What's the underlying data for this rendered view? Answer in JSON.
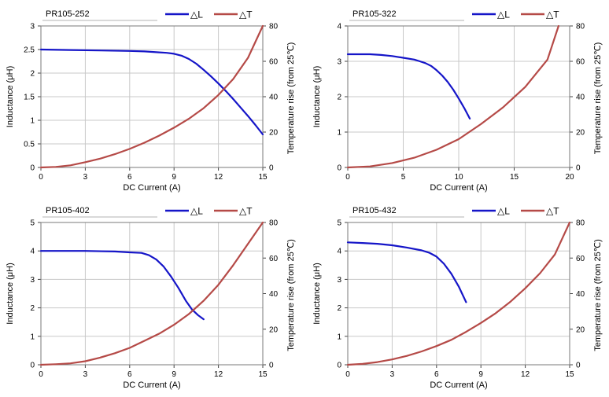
{
  "chart_data": [
    {
      "type": "line",
      "title": "PR105-252",
      "xlabel": "DC Current (A)",
      "ylabel": "Inductance (μH)",
      "y2label": "Temperature rise (from 25℃)",
      "xlim": [
        0,
        15
      ],
      "xticks": [
        0,
        3,
        6,
        9,
        12,
        15
      ],
      "ylim": [
        0,
        3
      ],
      "yticks": [
        "0",
        "0.5",
        "1",
        "1.5",
        "2",
        "2.5",
        "3"
      ],
      "y2lim": [
        0,
        80
      ],
      "y2ticks": [
        "0",
        "20",
        "40",
        "60",
        "80"
      ],
      "grid": true,
      "legend": "top-center",
      "series": [
        {
          "name": "△L",
          "axis": "left",
          "color": "#1515c8",
          "x": [
            0,
            2,
            4,
            6,
            7,
            8,
            8.5,
            9,
            9.5,
            10,
            10.5,
            11,
            11.5,
            12,
            12.5,
            13,
            13.5,
            14,
            14.5,
            15
          ],
          "y": [
            2.5,
            2.49,
            2.48,
            2.47,
            2.46,
            2.44,
            2.43,
            2.41,
            2.37,
            2.3,
            2.2,
            2.07,
            1.93,
            1.78,
            1.62,
            1.45,
            1.27,
            1.09,
            0.9,
            0.7
          ]
        },
        {
          "name": "△T",
          "axis": "right",
          "color": "#b54a47",
          "x": [
            0,
            1,
            2,
            3,
            4,
            5,
            6,
            7,
            8,
            9,
            10,
            11,
            12,
            13,
            14,
            15
          ],
          "y": [
            0,
            0.3,
            1.2,
            3,
            5,
            7.5,
            10.5,
            14,
            18,
            22.5,
            27.5,
            33.5,
            41,
            50,
            62,
            80
          ]
        }
      ]
    },
    {
      "type": "line",
      "title": "PR105-322",
      "xlabel": "DC Current (A)",
      "ylabel": "Inductance (μH)",
      "y2label": "Temperature rise (from 25℃)",
      "xlim": [
        0,
        20
      ],
      "xticks": [
        0,
        5,
        10,
        15,
        20
      ],
      "ylim": [
        0,
        4
      ],
      "yticks": [
        "0",
        "1",
        "2",
        "3",
        "4"
      ],
      "y2lim": [
        0,
        80
      ],
      "y2ticks": [
        "0",
        "20",
        "40",
        "60",
        "80"
      ],
      "grid": true,
      "legend": "top-center",
      "series": [
        {
          "name": "△L",
          "axis": "left",
          "color": "#1515c8",
          "x": [
            0,
            2,
            3,
            4,
            5,
            6,
            6.5,
            7,
            7.5,
            8,
            8.5,
            9,
            9.5,
            10,
            10.5,
            11
          ],
          "y": [
            3.2,
            3.2,
            3.18,
            3.15,
            3.1,
            3.05,
            3.0,
            2.95,
            2.87,
            2.75,
            2.6,
            2.42,
            2.2,
            1.95,
            1.68,
            1.38
          ]
        },
        {
          "name": "△T",
          "axis": "right",
          "color": "#b54a47",
          "x": [
            0,
            2,
            4,
            6,
            8,
            10,
            12,
            14,
            16,
            18,
            19
          ],
          "y": [
            0,
            0.6,
            2.5,
            5.5,
            10,
            16,
            24.5,
            34,
            45.5,
            61,
            80
          ]
        }
      ]
    },
    {
      "type": "line",
      "title": "PR105-402",
      "xlabel": "DC Current (A)",
      "ylabel": "Inductance (μH)",
      "y2label": "Temperature rise (from 25℃)",
      "xlim": [
        0,
        15
      ],
      "xticks": [
        0,
        3,
        6,
        9,
        12,
        15
      ],
      "ylim": [
        0,
        5
      ],
      "yticks": [
        "0",
        "1",
        "2",
        "3",
        "4",
        "5"
      ],
      "y2lim": [
        0,
        80
      ],
      "y2ticks": [
        "0",
        "20",
        "40",
        "60",
        "80"
      ],
      "grid": true,
      "legend": "top-center",
      "series": [
        {
          "name": "△L",
          "axis": "left",
          "color": "#1515c8",
          "x": [
            0,
            3,
            5,
            6,
            6.8,
            7.3,
            7.8,
            8.3,
            8.8,
            9.3,
            9.8,
            10.2,
            10.6,
            11
          ],
          "y": [
            4.0,
            4.0,
            3.98,
            3.95,
            3.93,
            3.85,
            3.7,
            3.45,
            3.1,
            2.7,
            2.25,
            1.95,
            1.75,
            1.6
          ]
        },
        {
          "name": "△T",
          "axis": "right",
          "color": "#b54a47",
          "x": [
            0,
            1,
            2,
            3,
            4,
            5,
            6,
            7,
            8,
            9,
            10,
            11,
            12,
            13,
            14,
            15
          ],
          "y": [
            0,
            0.3,
            0.8,
            2,
            4,
            6.5,
            9.5,
            13.5,
            17.5,
            22.5,
            28.5,
            36,
            45,
            56,
            68,
            80
          ]
        }
      ]
    },
    {
      "type": "line",
      "title": "PR105-432",
      "xlabel": "DC Current (A)",
      "ylabel": "Inductance (μH)",
      "y2label": "Temperature rise (from 25℃)",
      "xlim": [
        0,
        15
      ],
      "xticks": [
        0,
        3,
        6,
        9,
        12,
        15
      ],
      "ylim": [
        0,
        5
      ],
      "yticks": [
        "0",
        "1",
        "2",
        "3",
        "4",
        "5"
      ],
      "y2lim": [
        0,
        80
      ],
      "y2ticks": [
        "0",
        "20",
        "40",
        "60",
        "80"
      ],
      "grid": true,
      "legend": "top-center",
      "series": [
        {
          "name": "△L",
          "axis": "left",
          "color": "#1515c8",
          "x": [
            0,
            1,
            2,
            3,
            4,
            5,
            5.5,
            6,
            6.5,
            7,
            7.5,
            8
          ],
          "y": [
            4.3,
            4.28,
            4.25,
            4.2,
            4.12,
            4.02,
            3.94,
            3.8,
            3.55,
            3.2,
            2.75,
            2.2
          ]
        },
        {
          "name": "△T",
          "axis": "right",
          "color": "#b54a47",
          "x": [
            0,
            1,
            2,
            3,
            4,
            5,
            6,
            7,
            8,
            9,
            10,
            11,
            12,
            13,
            14,
            15
          ],
          "y": [
            0,
            0.5,
            1.5,
            3,
            5,
            7.5,
            10.5,
            14,
            18.5,
            23.5,
            29,
            35.5,
            43,
            51.5,
            62,
            80
          ]
        }
      ]
    }
  ]
}
